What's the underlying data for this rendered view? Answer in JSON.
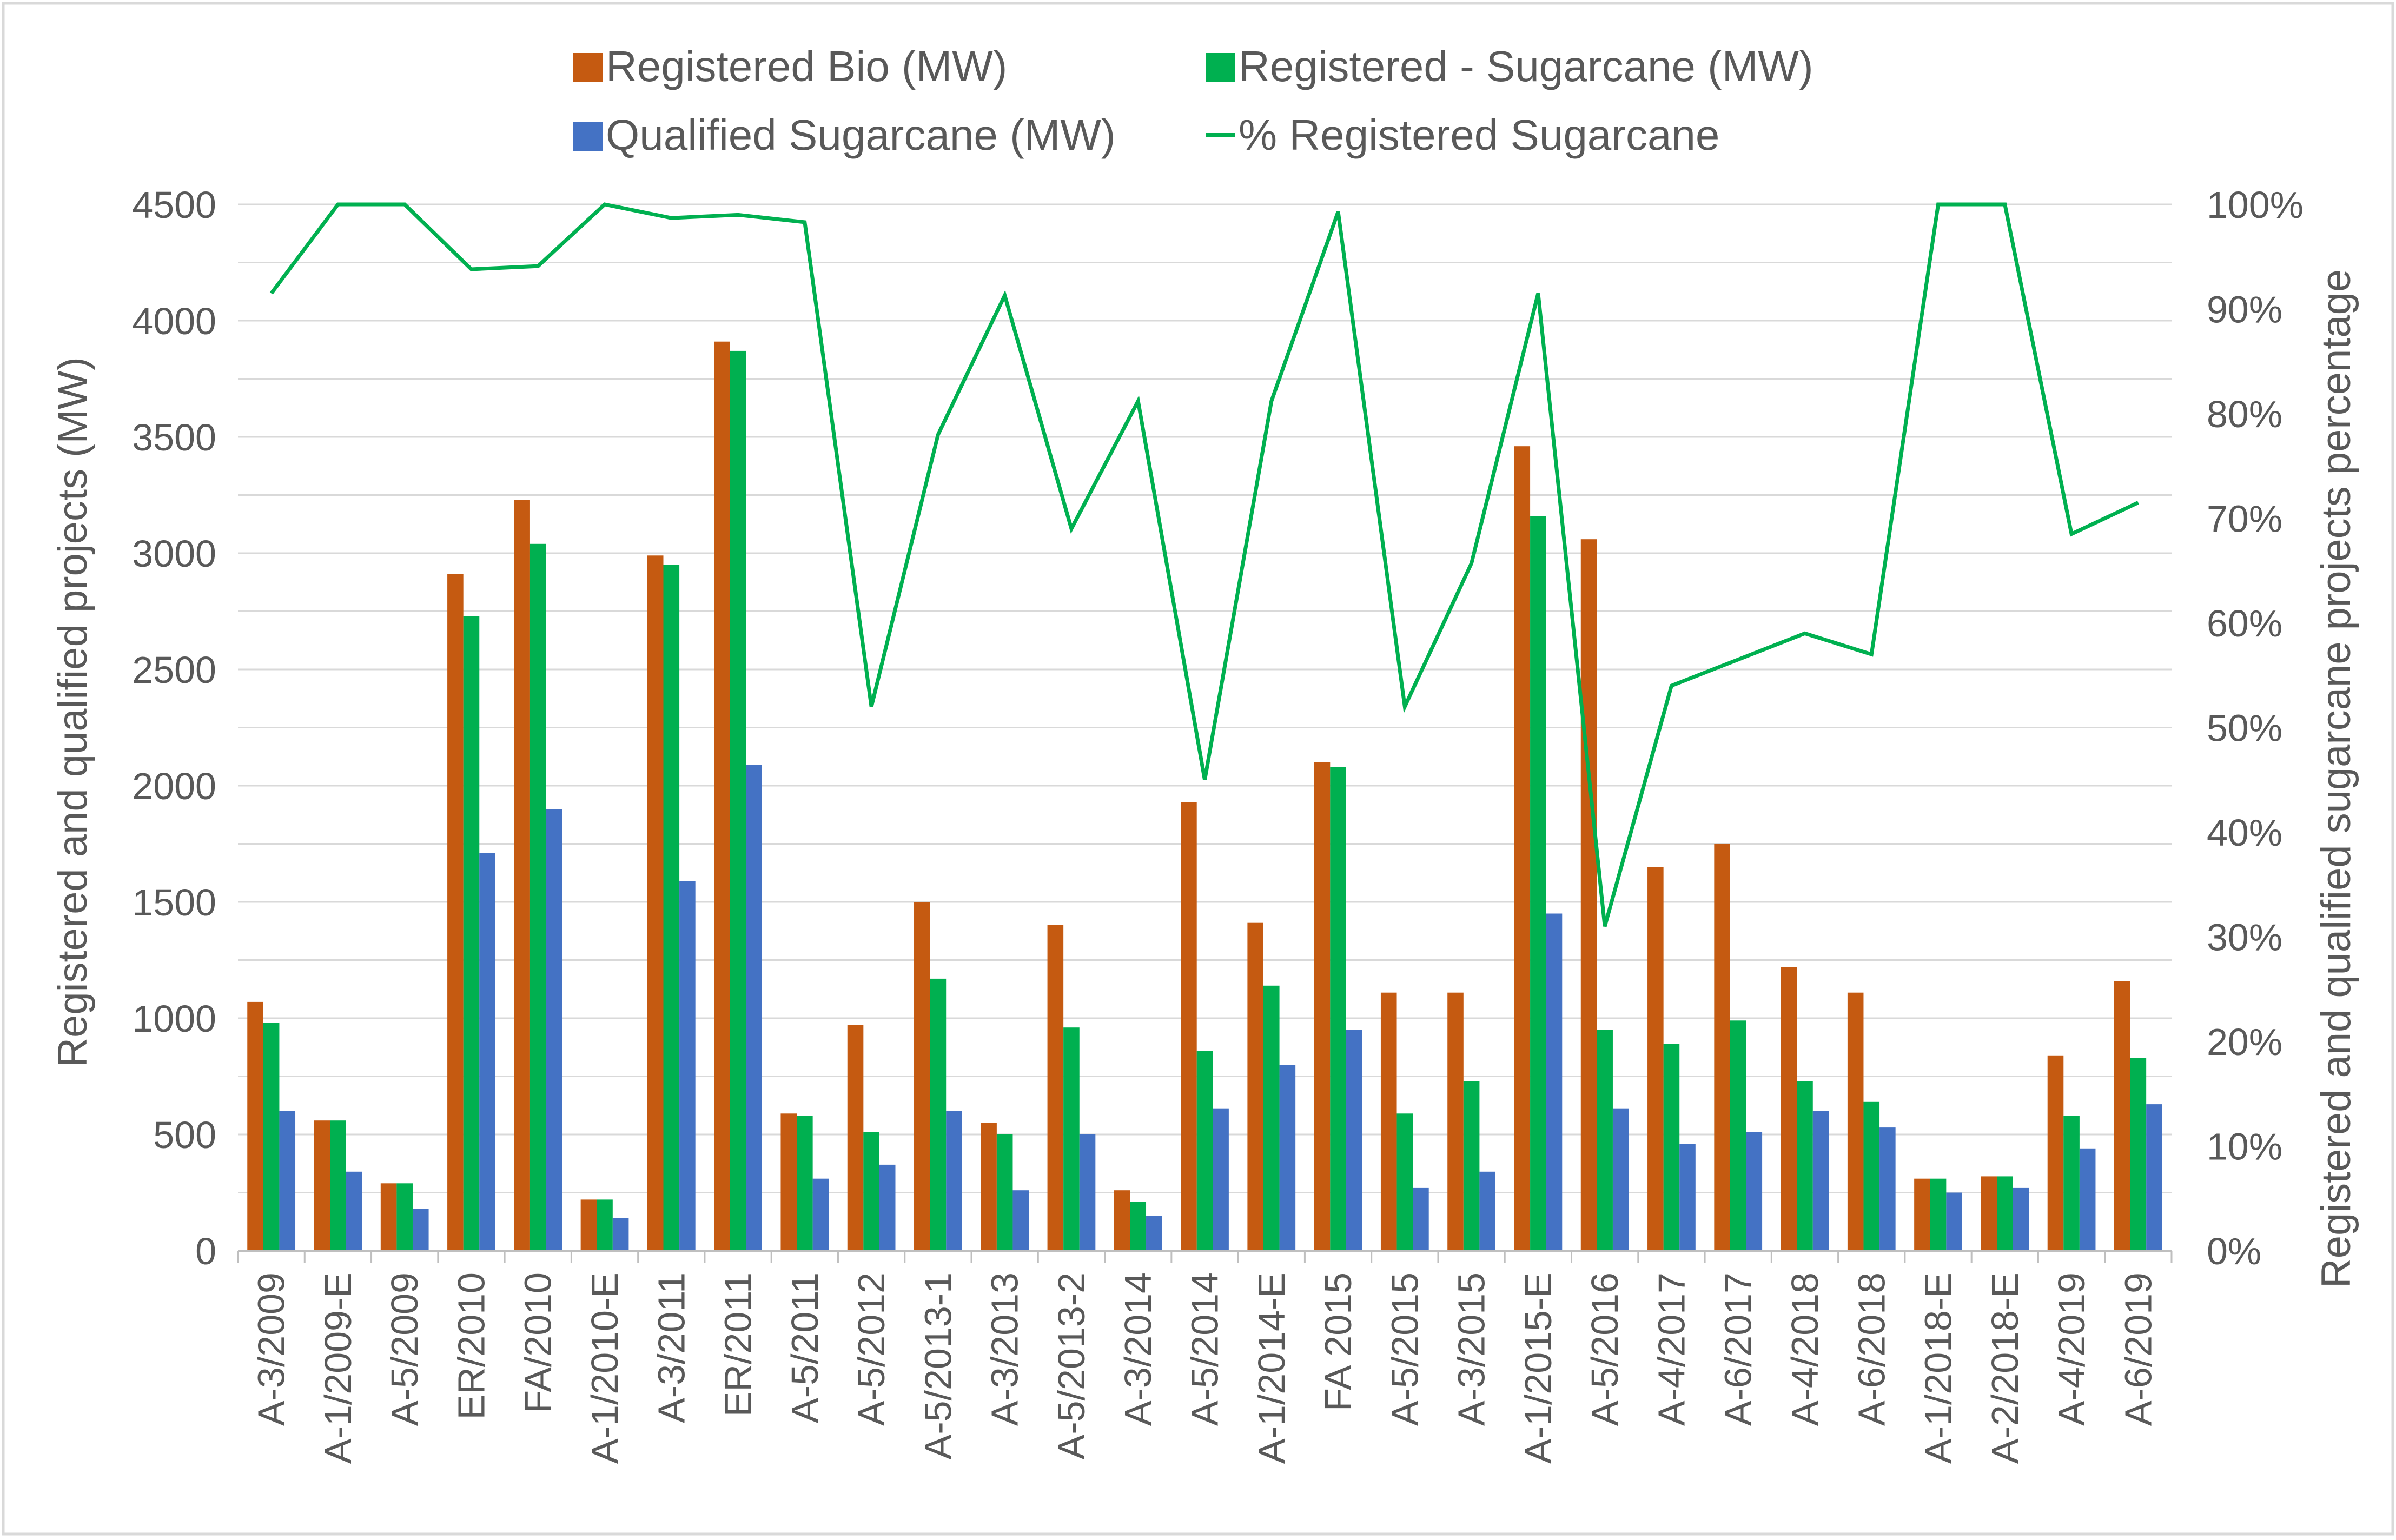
{
  "chart_data": {
    "type": "bar",
    "categories": [
      "A-3/2009",
      "A-1/2009-E",
      "A-5/2009",
      "ER/2010",
      "FA/2010",
      "A-1/2010-E",
      "A-3/2011",
      "ER/2011",
      "A-5/2011",
      "A-5/2012",
      "A-5/2013-1",
      "A-3/2013",
      "A-5/2013-2",
      "A-3/2014",
      "A-5/2014",
      "A-1/2014-E",
      "FA 2015",
      "A-5/2015",
      "A-3/2015",
      "A-1/2015-E",
      "A-5/2016",
      "A-4/2017",
      "A-6/2017",
      "A-4/2018",
      "A-6/2018",
      "A-1/2018-E",
      "A-2/2018-E",
      "A-4/2019",
      "A-6/2019"
    ],
    "series": [
      {
        "name": "Registered Bio (MW)",
        "color": "#C55A11",
        "kind": "bar",
        "axis": "left",
        "values": [
          1070,
          560,
          290,
          2910,
          3230,
          220,
          2990,
          3910,
          590,
          970,
          1500,
          550,
          1400,
          260,
          1930,
          1410,
          2100,
          1110,
          1110,
          3460,
          3060,
          1650,
          1750,
          1220,
          1110,
          310,
          320,
          840,
          1160
        ]
      },
      {
        "name": "Registered - Sugarcane (MW)",
        "color": "#00B050",
        "kind": "bar",
        "axis": "left",
        "values": [
          980,
          560,
          290,
          2730,
          3040,
          220,
          2950,
          3870,
          580,
          510,
          1170,
          500,
          960,
          210,
          860,
          1140,
          2080,
          590,
          730,
          3160,
          950,
          890,
          990,
          730,
          640,
          310,
          320,
          580,
          830
        ]
      },
      {
        "name": "Qualified Sugarcane (MW)",
        "color": "#4472C4",
        "kind": "bar",
        "axis": "left",
        "values": [
          600,
          340,
          180,
          1710,
          1900,
          140,
          1590,
          2090,
          310,
          370,
          600,
          260,
          500,
          150,
          610,
          800,
          950,
          270,
          340,
          1450,
          610,
          460,
          510,
          600,
          530,
          250,
          270,
          440,
          630
        ]
      },
      {
        "name": "% Registered Sugarcane",
        "color": "#00B050",
        "kind": "line",
        "axis": "right",
        "values": [
          91.5,
          100,
          100,
          93.8,
          94.1,
          100,
          98.7,
          99.0,
          98.3,
          52,
          78,
          91.3,
          69,
          81.2,
          45,
          81.2,
          99.3,
          52,
          65.7,
          91.5,
          31,
          54,
          56.5,
          59,
          57,
          100,
          100,
          68.5,
          71.5
        ]
      }
    ],
    "title": "",
    "xlabel": "",
    "ylabel": "Registered and qualified projects (MW)",
    "y2label": "Registered and qualified sugarcane projects percentage",
    "ylim": [
      0,
      4500
    ],
    "y2lim": [
      0,
      100
    ],
    "yticks": [
      "0",
      "500",
      "1000",
      "1500",
      "2000",
      "2500",
      "3000",
      "3500",
      "4000",
      "4500"
    ],
    "y2ticks": [
      "0%",
      "10%",
      "20%",
      "30%",
      "40%",
      "50%",
      "60%",
      "70%",
      "80%",
      "90%",
      "100%"
    ],
    "grid": true,
    "legend": "top-center"
  }
}
